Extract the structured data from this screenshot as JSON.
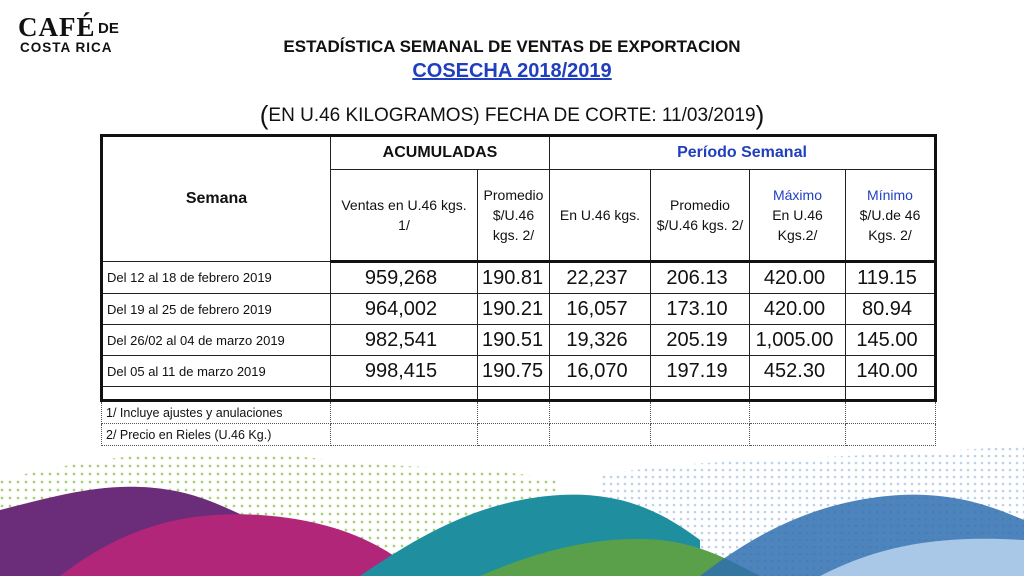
{
  "logo": {
    "line1": "CAFÉ",
    "line1_suffix": "DE",
    "line2": "COSTA RICA"
  },
  "header": {
    "title": "ESTADÍSTICA SEMANAL DE VENTAS DE EXPORTACION",
    "subtitle": "COSECHA 2018/2019",
    "date_line": "EN U.46 KILOGRAMOS) FECHA DE CORTE: 11/03/2019",
    "paren_open": "(",
    "paren_close": ")"
  },
  "table": {
    "semana_header": "Semana",
    "acumuladas_header": "ACUMULADAS",
    "periodo_header": "Período Semanal",
    "columns": {
      "ventas": "Ventas en U.46 kgs. 1/",
      "promedio_acum": "Promedio $/U.46 kgs. 2/",
      "en_u46": "En U.46 kgs.",
      "promedio_sem": "Promedio $/U.46 kgs. 2/",
      "maximo_title": "Máximo",
      "maximo_rest": "En U.46 Kgs.2/",
      "minimo_title": "Mínimo",
      "minimo_rest": "$/U.de 46 Kgs. 2/"
    },
    "rows": [
      {
        "semana": "Del 12  al 18 de febrero 2019",
        "ventas": "959,268",
        "prom_acum": "190.81",
        "en_u46": "22,237",
        "prom_sem": "206.13",
        "maximo": "420.00",
        "minimo": "119.15"
      },
      {
        "semana": "Del 19  al 25 de febrero 2019",
        "ventas": "964,002",
        "prom_acum": "190.21",
        "en_u46": "16,057",
        "prom_sem": "173.10",
        "maximo": "420.00",
        "minimo": "80.94"
      },
      {
        "semana": "Del 26/02  al 04 de marzo 2019",
        "ventas": "982,541",
        "prom_acum": "190.51",
        "en_u46": "19,326",
        "prom_sem": "205.19",
        "maximo": "1,005.00",
        "minimo": "145.00"
      },
      {
        "semana": "Del 05 al 11 de marzo 2019",
        "ventas": "998,415",
        "prom_acum": "190.75",
        "en_u46": "16,070",
        "prom_sem": "197.19",
        "maximo": "452.30",
        "minimo": "140.00"
      }
    ],
    "notes": [
      "1/ Incluye  ajustes y anulaciones",
      "2/ Precio en Rieles (U.46 Kg.)"
    ]
  },
  "colors": {
    "accent_blue": "#1f3fbf",
    "deco_purple": "#6b2c7a",
    "deco_magenta": "#b2267a",
    "deco_teal": "#1f8fa0",
    "deco_lightblue": "#a9c7e6",
    "deco_green": "#8cc04a"
  }
}
